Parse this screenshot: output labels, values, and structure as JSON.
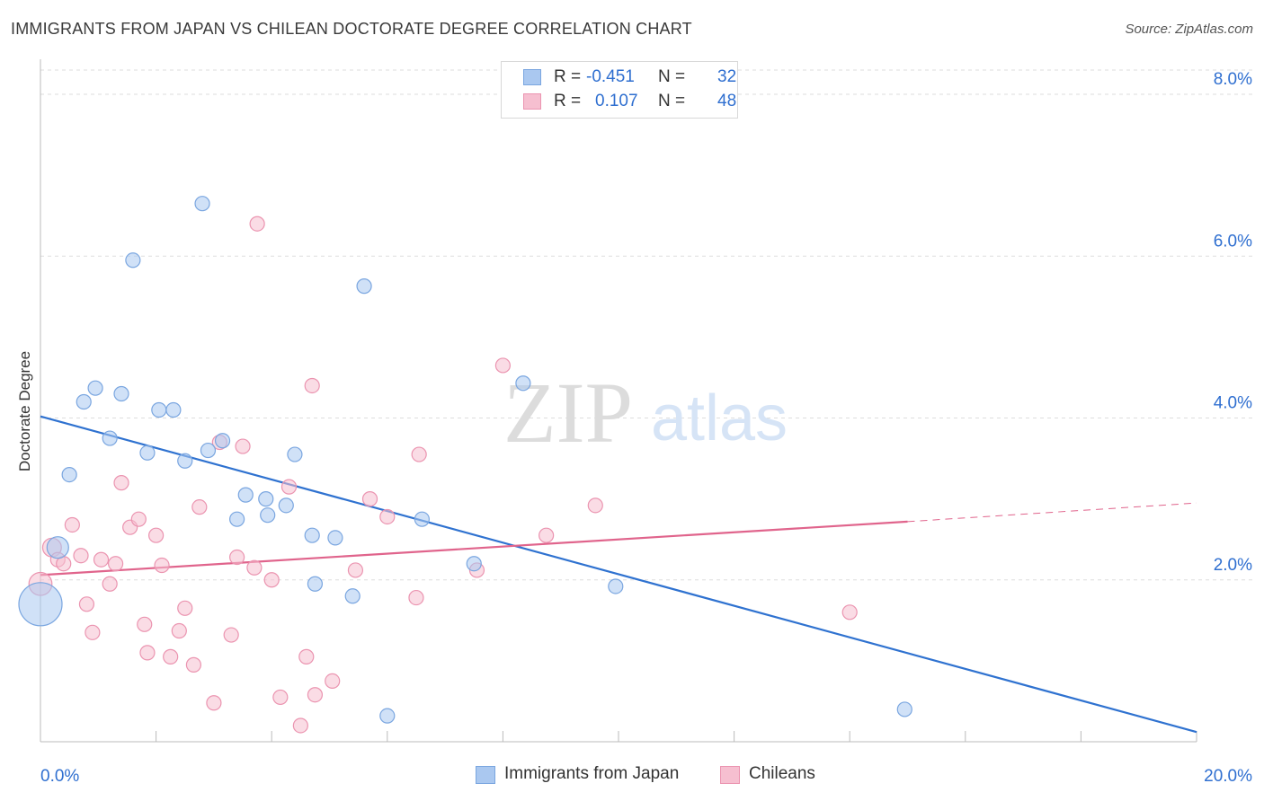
{
  "title": "IMMIGRANTS FROM JAPAN VS CHILEAN DOCTORATE DEGREE CORRELATION CHART",
  "source": "Source: ZipAtlas.com",
  "watermark": {
    "zip": "ZIP",
    "atlas": "atlas"
  },
  "legend": {
    "rows": [
      {
        "r_label": "R =",
        "r_value": "-0.451",
        "n_label": "N =",
        "n_value": "32"
      },
      {
        "r_label": "R =",
        "r_value": "0.107",
        "n_label": "N =",
        "n_value": "48"
      }
    ]
  },
  "colors": {
    "japan_fill": "#aac8f0",
    "japan_stroke": "#7aa6e0",
    "japan_line": "#2f72d0",
    "chile_fill": "#f6bfd0",
    "chile_stroke": "#eb94b0",
    "chile_line": "#e0648c",
    "axis_text": "#2f6fd0",
    "grid": "#dddddd"
  },
  "chart_data": {
    "type": "scatter",
    "title": "IMMIGRANTS FROM JAPAN VS CHILEAN DOCTORATE DEGREE CORRELATION CHART",
    "xlabel": "",
    "ylabel": "Doctorate Degree",
    "xlim": [
      0,
      20
    ],
    "ylim": [
      0,
      8.3
    ],
    "x_tick_labels": [
      "0.0%",
      "20.0%"
    ],
    "y_ticks": [
      2,
      4,
      6,
      8
    ],
    "y_tick_labels": [
      "2.0%",
      "4.0%",
      "6.0%",
      "8.0%"
    ],
    "grid": "horizontal dashed",
    "legend_position": "top-center",
    "series": [
      {
        "name": "Immigrants from Japan",
        "color": "#aac8f0",
        "points": [
          [
            0.0,
            1.7,
            3
          ],
          [
            0.3,
            2.4,
            1.5
          ],
          [
            0.5,
            3.3,
            1
          ],
          [
            0.75,
            4.2,
            1
          ],
          [
            0.95,
            4.37,
            1
          ],
          [
            1.2,
            3.75,
            1
          ],
          [
            1.4,
            4.3,
            1
          ],
          [
            1.6,
            5.95,
            1
          ],
          [
            1.85,
            3.57,
            1
          ],
          [
            2.05,
            4.1,
            1
          ],
          [
            2.3,
            4.1,
            1
          ],
          [
            2.5,
            3.47,
            1
          ],
          [
            2.8,
            6.65,
            1
          ],
          [
            2.9,
            3.6,
            1
          ],
          [
            3.15,
            3.72,
            1
          ],
          [
            3.4,
            2.75,
            1
          ],
          [
            3.55,
            3.05,
            1
          ],
          [
            3.9,
            3.0,
            1
          ],
          [
            3.93,
            2.8,
            1
          ],
          [
            4.25,
            2.92,
            1
          ],
          [
            4.4,
            3.55,
            1
          ],
          [
            4.7,
            2.55,
            1
          ],
          [
            4.75,
            1.95,
            1
          ],
          [
            5.1,
            2.52,
            1
          ],
          [
            5.4,
            1.8,
            1
          ],
          [
            5.6,
            5.63,
            1
          ],
          [
            6.0,
            0.32,
            1
          ],
          [
            6.6,
            2.75,
            1
          ],
          [
            7.5,
            2.2,
            1
          ],
          [
            8.35,
            4.43,
            1
          ],
          [
            9.95,
            1.92,
            1
          ],
          [
            14.95,
            0.4,
            1
          ]
        ]
      },
      {
        "name": "Chileans",
        "color": "#f6bfd0",
        "points": [
          [
            0.0,
            1.95,
            1.6
          ],
          [
            0.2,
            2.4,
            1.3
          ],
          [
            0.3,
            2.25,
            1
          ],
          [
            0.4,
            2.2,
            1
          ],
          [
            0.55,
            2.68,
            1
          ],
          [
            0.7,
            2.3,
            1
          ],
          [
            0.8,
            1.7,
            1
          ],
          [
            0.9,
            1.35,
            1
          ],
          [
            1.05,
            2.25,
            1
          ],
          [
            1.2,
            1.95,
            1
          ],
          [
            1.3,
            2.2,
            1
          ],
          [
            1.4,
            3.2,
            1
          ],
          [
            1.55,
            2.65,
            1
          ],
          [
            1.7,
            2.75,
            1
          ],
          [
            1.8,
            1.45,
            1
          ],
          [
            1.85,
            1.1,
            1
          ],
          [
            2.0,
            2.55,
            1
          ],
          [
            2.1,
            2.18,
            1
          ],
          [
            2.25,
            1.05,
            1
          ],
          [
            2.4,
            1.37,
            1
          ],
          [
            2.5,
            1.65,
            1
          ],
          [
            2.65,
            0.95,
            1
          ],
          [
            2.75,
            2.9,
            1
          ],
          [
            3.0,
            0.48,
            1
          ],
          [
            3.1,
            3.7,
            1
          ],
          [
            3.3,
            1.32,
            1
          ],
          [
            3.4,
            2.28,
            1
          ],
          [
            3.5,
            3.65,
            1
          ],
          [
            3.7,
            2.15,
            1
          ],
          [
            3.75,
            6.4,
            1
          ],
          [
            4.0,
            2.0,
            1
          ],
          [
            4.15,
            0.55,
            1
          ],
          [
            4.3,
            3.15,
            1
          ],
          [
            4.5,
            0.2,
            1
          ],
          [
            4.6,
            1.05,
            1
          ],
          [
            4.7,
            4.4,
            1
          ],
          [
            4.75,
            0.58,
            1
          ],
          [
            5.05,
            0.75,
            1
          ],
          [
            5.45,
            2.12,
            1
          ],
          [
            5.7,
            3.0,
            1
          ],
          [
            6.0,
            2.78,
            1
          ],
          [
            6.5,
            1.78,
            1
          ],
          [
            6.55,
            3.55,
            1
          ],
          [
            7.55,
            2.12,
            1
          ],
          [
            8.0,
            4.65,
            1
          ],
          [
            8.75,
            2.55,
            1
          ],
          [
            9.6,
            2.92,
            1
          ],
          [
            14.0,
            1.6,
            1
          ]
        ]
      }
    ],
    "trendlines": [
      {
        "series": "Immigrants from Japan",
        "x": [
          0,
          20
        ],
        "y": [
          4.02,
          0.12
        ],
        "style": "solid"
      },
      {
        "series": "Chileans",
        "x": [
          0,
          15
        ],
        "y": [
          2.06,
          2.72
        ],
        "style": "solid"
      },
      {
        "series": "Chileans",
        "x": [
          15,
          20
        ],
        "y": [
          2.72,
          2.95
        ],
        "style": "dashed"
      }
    ]
  }
}
